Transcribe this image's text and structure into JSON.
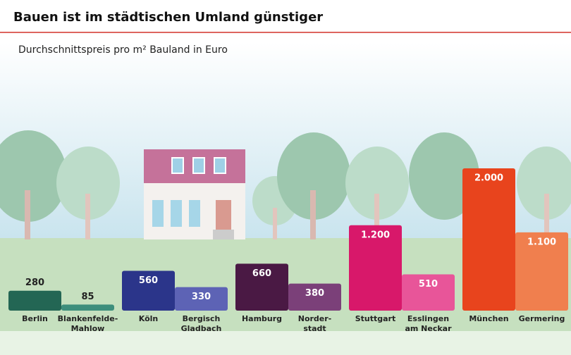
{
  "chart_data": {
    "type": "bar",
    "title": "Bauen ist im städtischen Umland günstiger",
    "subtitle": "Durchschnittspreis pro m² Bauland in Euro",
    "categories": [
      "Berlin",
      "Blankenfelde-\nMahlow",
      "Köln",
      "Bergisch\nGladbach",
      "Hamburg",
      "Norder-\nstadt",
      "Stuttgart",
      "Esslingen\nam Neckar",
      "München",
      "Germering"
    ],
    "values": [
      280,
      85,
      560,
      330,
      660,
      380,
      1200,
      510,
      2000,
      1100
    ],
    "value_labels": [
      "280",
      "85",
      "560",
      "330",
      "660",
      "380",
      "1.200",
      "510",
      "2.000",
      "1.100"
    ],
    "colors": [
      "#236654",
      "#3d8e7c",
      "#2b358a",
      "#5d63b5",
      "#4a1944",
      "#7b4079",
      "#d8186a",
      "#e85599",
      "#e8441d",
      "#f07f4e"
    ],
    "ylim": [
      0,
      2000
    ]
  }
}
